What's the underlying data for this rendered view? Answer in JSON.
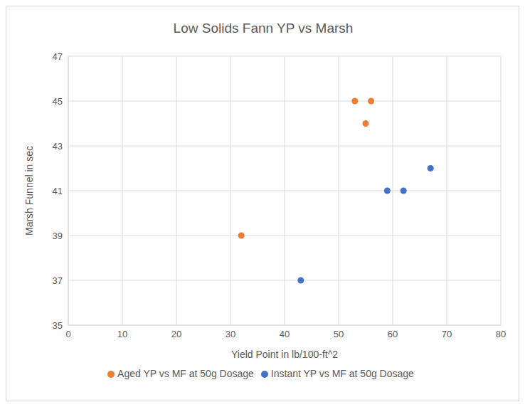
{
  "chart_data": {
    "type": "scatter",
    "title": "Low Solids Fann YP vs Marsh",
    "x_label": "Yield Point in lb/100-ft^2",
    "y_label": "Marsh Funnel in sec",
    "series": [
      {
        "name": "Instant YP vs MF at 50g Dosage",
        "color": "#4472c4",
        "marker": "circle",
        "x": [
          43,
          59,
          62,
          67
        ],
        "values": [
          37,
          41,
          41,
          42
        ]
      },
      {
        "name": "Aged YP vs MF at 50g Dosage",
        "color": "#ed7d31",
        "marker": "circle",
        "x": [
          32,
          53,
          55,
          56
        ],
        "values": [
          39,
          45,
          44,
          45
        ]
      }
    ],
    "xlim": [
      0,
      80
    ],
    "xticks": [
      0,
      10,
      20,
      30,
      40,
      50,
      60,
      70,
      80
    ],
    "ylim": [
      35,
      47
    ],
    "yticks": [
      35,
      37,
      39,
      41,
      43,
      45,
      47
    ],
    "grid": true,
    "legend": "bottom"
  }
}
